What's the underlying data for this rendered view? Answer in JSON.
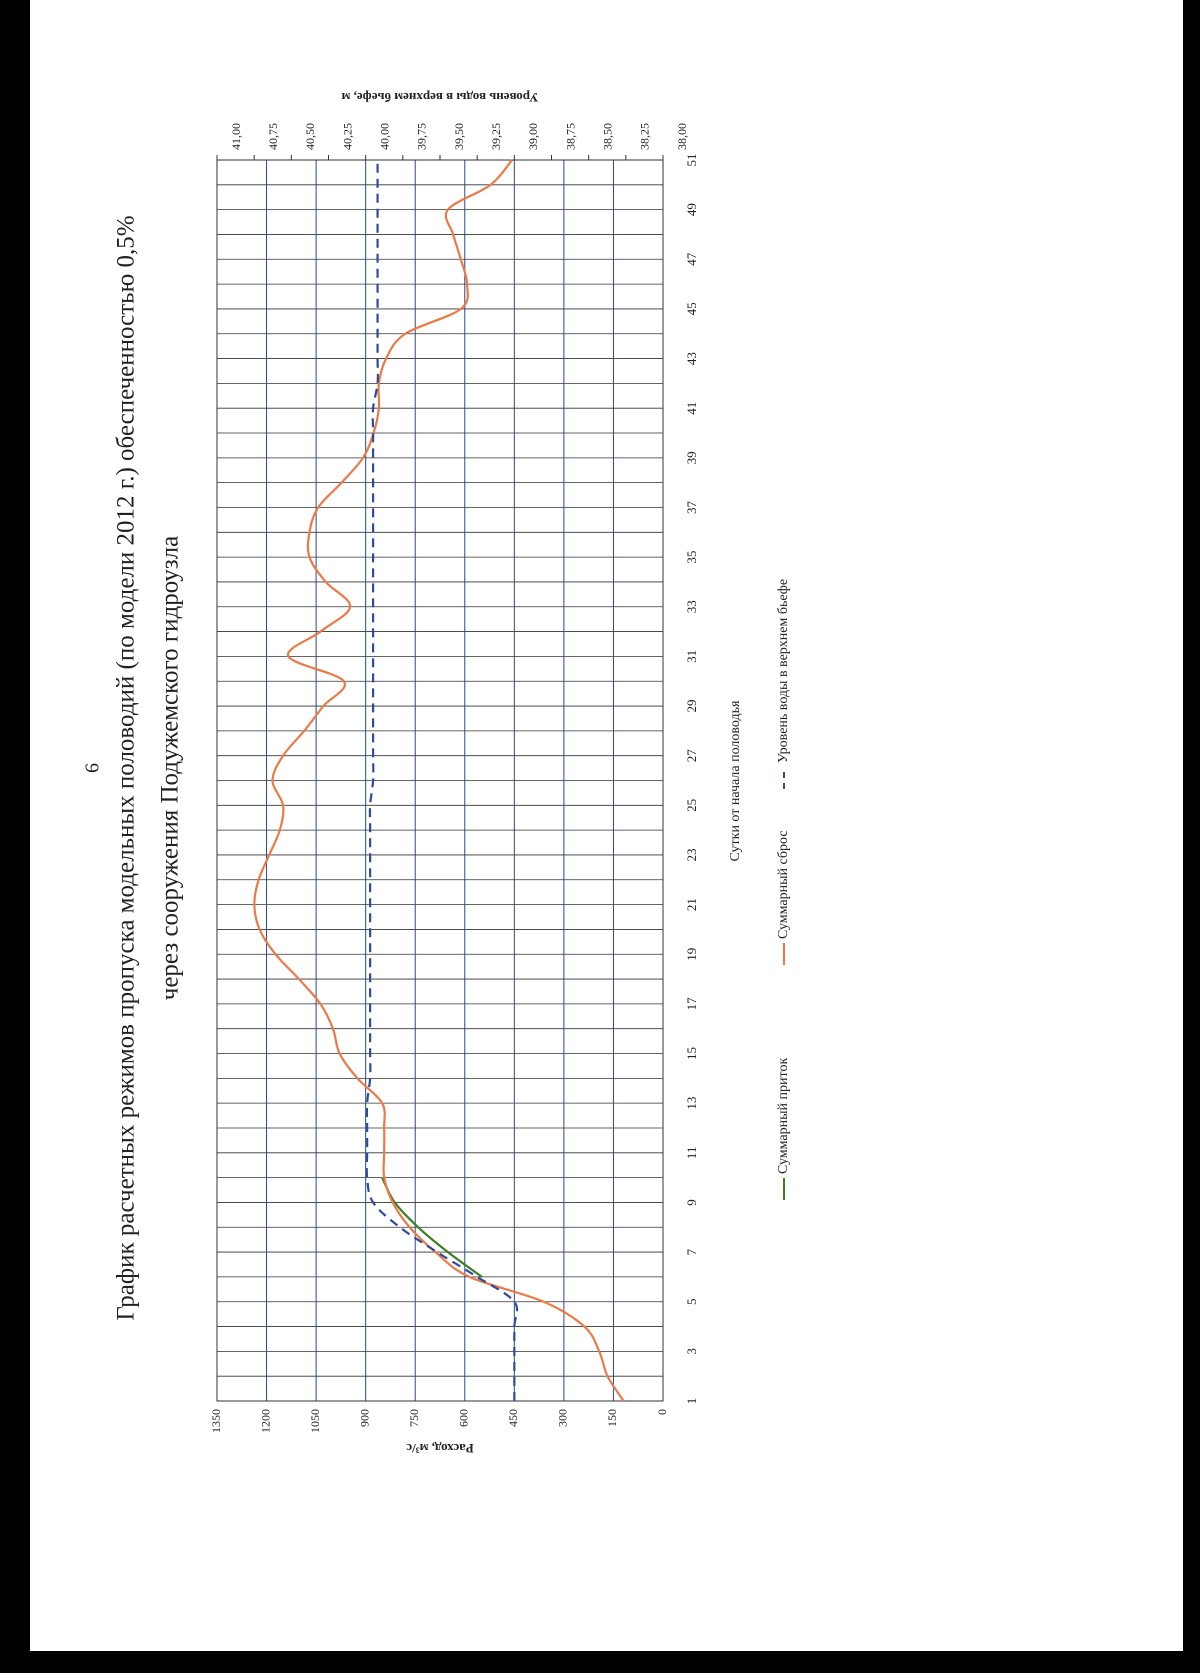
{
  "page_number": "6",
  "chart_data": {
    "type": "line",
    "title": [
      "График расчетных режимов пропуска модельных половодий (по модели 2012 г.) обеспеченностью 0,5%",
      "через сооружения Подужемского гидроузла"
    ],
    "x_label": "Сутки от начала половодья",
    "y_label": "Расход, м³/с",
    "y2_label": "Уровень воды в верхнем бьефе, м",
    "x": [
      1,
      2,
      3,
      4,
      5,
      6,
      7,
      8,
      9,
      10,
      11,
      12,
      13,
      14,
      15,
      16,
      17,
      18,
      19,
      20,
      21,
      22,
      23,
      24,
      25,
      26,
      27,
      28,
      29,
      30,
      31,
      32,
      33,
      34,
      35,
      36,
      37,
      38,
      39,
      40,
      41,
      42,
      43,
      44,
      45,
      46,
      47,
      48,
      49,
      50,
      51
    ],
    "xlim": [
      1,
      51
    ],
    "xticks": [
      1,
      3,
      5,
      7,
      9,
      11,
      13,
      15,
      17,
      19,
      21,
      23,
      25,
      27,
      29,
      31,
      33,
      35,
      37,
      39,
      41,
      43,
      45,
      47,
      49,
      51
    ],
    "ylim": [
      0,
      1350
    ],
    "yticks": [
      0,
      150,
      300,
      450,
      600,
      750,
      900,
      1050,
      1200,
      1350
    ],
    "y2lim": [
      38,
      41
    ],
    "y2ticks": [
      {
        "value": 38,
        "label": "38,00"
      },
      {
        "value": 38.25,
        "label": "38,25"
      },
      {
        "value": 38.5,
        "label": "38,50"
      },
      {
        "value": 38.75,
        "label": "38,75"
      },
      {
        "value": 39,
        "label": "39,00"
      },
      {
        "value": 39.25,
        "label": "39,25"
      },
      {
        "value": 39.5,
        "label": "39,50"
      },
      {
        "value": 39.75,
        "label": "39,75"
      },
      {
        "value": 40,
        "label": "40,00"
      },
      {
        "value": 40.25,
        "label": "40,25"
      },
      {
        "value": 40.5,
        "label": "40,50"
      },
      {
        "value": 40.75,
        "label": "40,75"
      },
      {
        "value": 41,
        "label": "41,00"
      }
    ],
    "grid": true,
    "series": [
      {
        "name": "Суммарный приток",
        "color": "#3f7f2a",
        "dash": false,
        "values": [
          null,
          null,
          null,
          null,
          null,
          548,
          651,
          741,
          812,
          850,
          null,
          null,
          null,
          null,
          null,
          null,
          null,
          null,
          null,
          null,
          null,
          null,
          null,
          null,
          null,
          null,
          null,
          null,
          null,
          null,
          null,
          null,
          null,
          null,
          null,
          null,
          null,
          null,
          null,
          null,
          null,
          null,
          null,
          null,
          null,
          null,
          null,
          null,
          null,
          null,
          null
        ]
      },
      {
        "name": "Суммарный сброс",
        "color": "#ec7a48",
        "dash": false,
        "values": [
          119,
          168,
          193,
          238,
          361,
          586,
          689,
          767,
          818,
          844,
          844,
          844,
          850,
          925,
          979,
          999,
          1037,
          1102,
          1173,
          1221,
          1237,
          1224,
          1192,
          1160,
          1150,
          1182,
          1150,
          1086,
          1028,
          966,
          1134,
          1037,
          947,
          1021,
          1070,
          1070,
          1044,
          973,
          908,
          876,
          860,
          860,
          838,
          780,
          612,
          593,
          612,
          635,
          651,
          522,
          457
        ]
      },
      {
        "name": "Уровень воды в верхнем бьефе",
        "color": "#2e4c9c",
        "dash": true,
        "axis": "y2",
        "values": [
          39.0,
          39.0,
          39.0,
          39.0,
          39.0,
          39.25,
          39.52,
          39.77,
          39.95,
          39.99,
          39.99,
          39.99,
          39.99,
          39.97,
          39.97,
          39.97,
          39.97,
          39.97,
          39.97,
          39.97,
          39.97,
          39.97,
          39.97,
          39.97,
          39.97,
          39.95,
          39.95,
          39.95,
          39.95,
          39.95,
          39.95,
          39.95,
          39.95,
          39.95,
          39.95,
          39.95,
          39.95,
          39.95,
          39.95,
          39.95,
          39.95,
          39.92,
          39.92,
          39.92,
          39.92,
          39.92,
          39.92,
          39.92,
          39.92,
          39.92,
          39.92
        ]
      }
    ]
  }
}
